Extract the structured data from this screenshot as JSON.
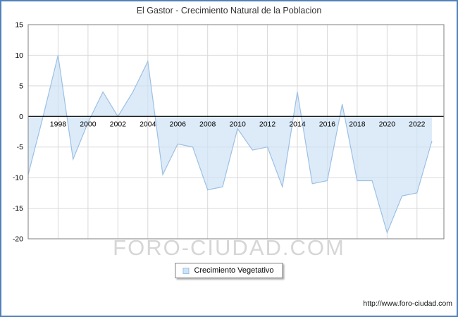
{
  "title": "El Gastor - Crecimiento Natural de la Poblacion",
  "watermark": "FORO-CIUDAD.COM",
  "footer_url": "http://www.foro-ciudad.com",
  "legend": {
    "label": "Crecimiento Vegetativo"
  },
  "colors": {
    "frame_border": "#4f81bd",
    "plot_border": "#7f7f7f",
    "grid": "#d9d9d9",
    "zero_axis": "#000000",
    "line": "#9cc0e4",
    "fill": "#cfe3f6",
    "tick_text": "#000000",
    "title_text": "#333333"
  },
  "chart_data": {
    "type": "area",
    "title": "El Gastor - Crecimiento Natural de la Poblacion",
    "x_start": 1996,
    "x_axis_end": 2023.8,
    "x": [
      1996,
      1997,
      1998,
      1999,
      2000,
      2001,
      2002,
      2003,
      2004,
      2005,
      2006,
      2007,
      2008,
      2009,
      2010,
      2011,
      2012,
      2013,
      2014,
      2015,
      2016,
      2017,
      2018,
      2019,
      2020,
      2021,
      2022,
      2023
    ],
    "series": [
      {
        "name": "Crecimiento Vegetativo",
        "values": [
          -9.5,
          0,
          10,
          -7,
          -1,
          4,
          0,
          4,
          9,
          -9.5,
          -4.5,
          -5,
          -12,
          -11.5,
          -2,
          -5.5,
          -5,
          -11.5,
          4,
          -11,
          -10.5,
          2,
          -10.5,
          -10.5,
          -19,
          -13,
          -12.5,
          -4
        ]
      }
    ],
    "ylim": [
      -20,
      15
    ],
    "yticks": [
      15,
      10,
      5,
      0,
      -5,
      -10,
      -15,
      -20
    ],
    "xticks": [
      1998,
      2000,
      2002,
      2004,
      2006,
      2008,
      2010,
      2012,
      2014,
      2016,
      2018,
      2020,
      2022
    ],
    "baseline": 0,
    "grid": true,
    "legend_position": "bottom"
  }
}
